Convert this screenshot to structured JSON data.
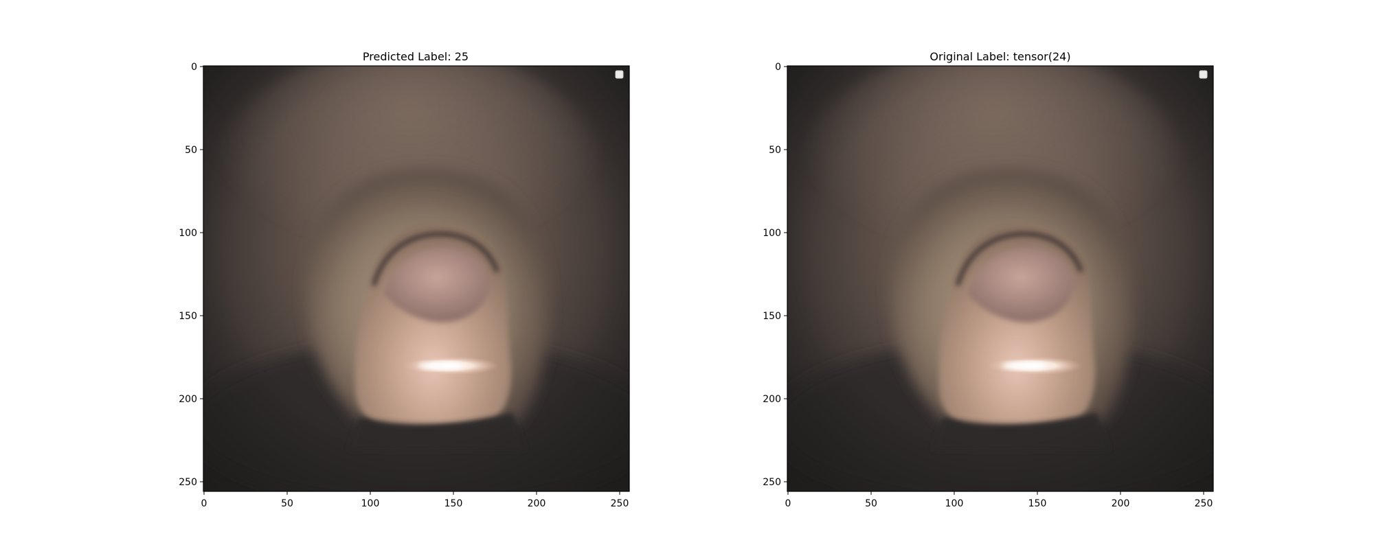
{
  "figure": {
    "panels": [
      {
        "title": "Predicted Label: 25",
        "x_ticks": [
          "0",
          "50",
          "100",
          "150",
          "200",
          "250"
        ],
        "y_ticks": [
          "0",
          "50",
          "100",
          "150",
          "200",
          "250"
        ],
        "x_range": [
          0,
          256
        ],
        "y_range": [
          0,
          256
        ],
        "legend": "top-right",
        "image": "endoscopic-lumen-view"
      },
      {
        "title": "Original Label: tensor(24)",
        "x_ticks": [
          "0",
          "50",
          "100",
          "150",
          "200",
          "250"
        ],
        "y_ticks": [
          "0",
          "50",
          "100",
          "150",
          "200",
          "250"
        ],
        "x_range": [
          0,
          256
        ],
        "y_range": [
          0,
          256
        ],
        "legend": "top-right",
        "image": "endoscopic-lumen-view"
      }
    ]
  }
}
